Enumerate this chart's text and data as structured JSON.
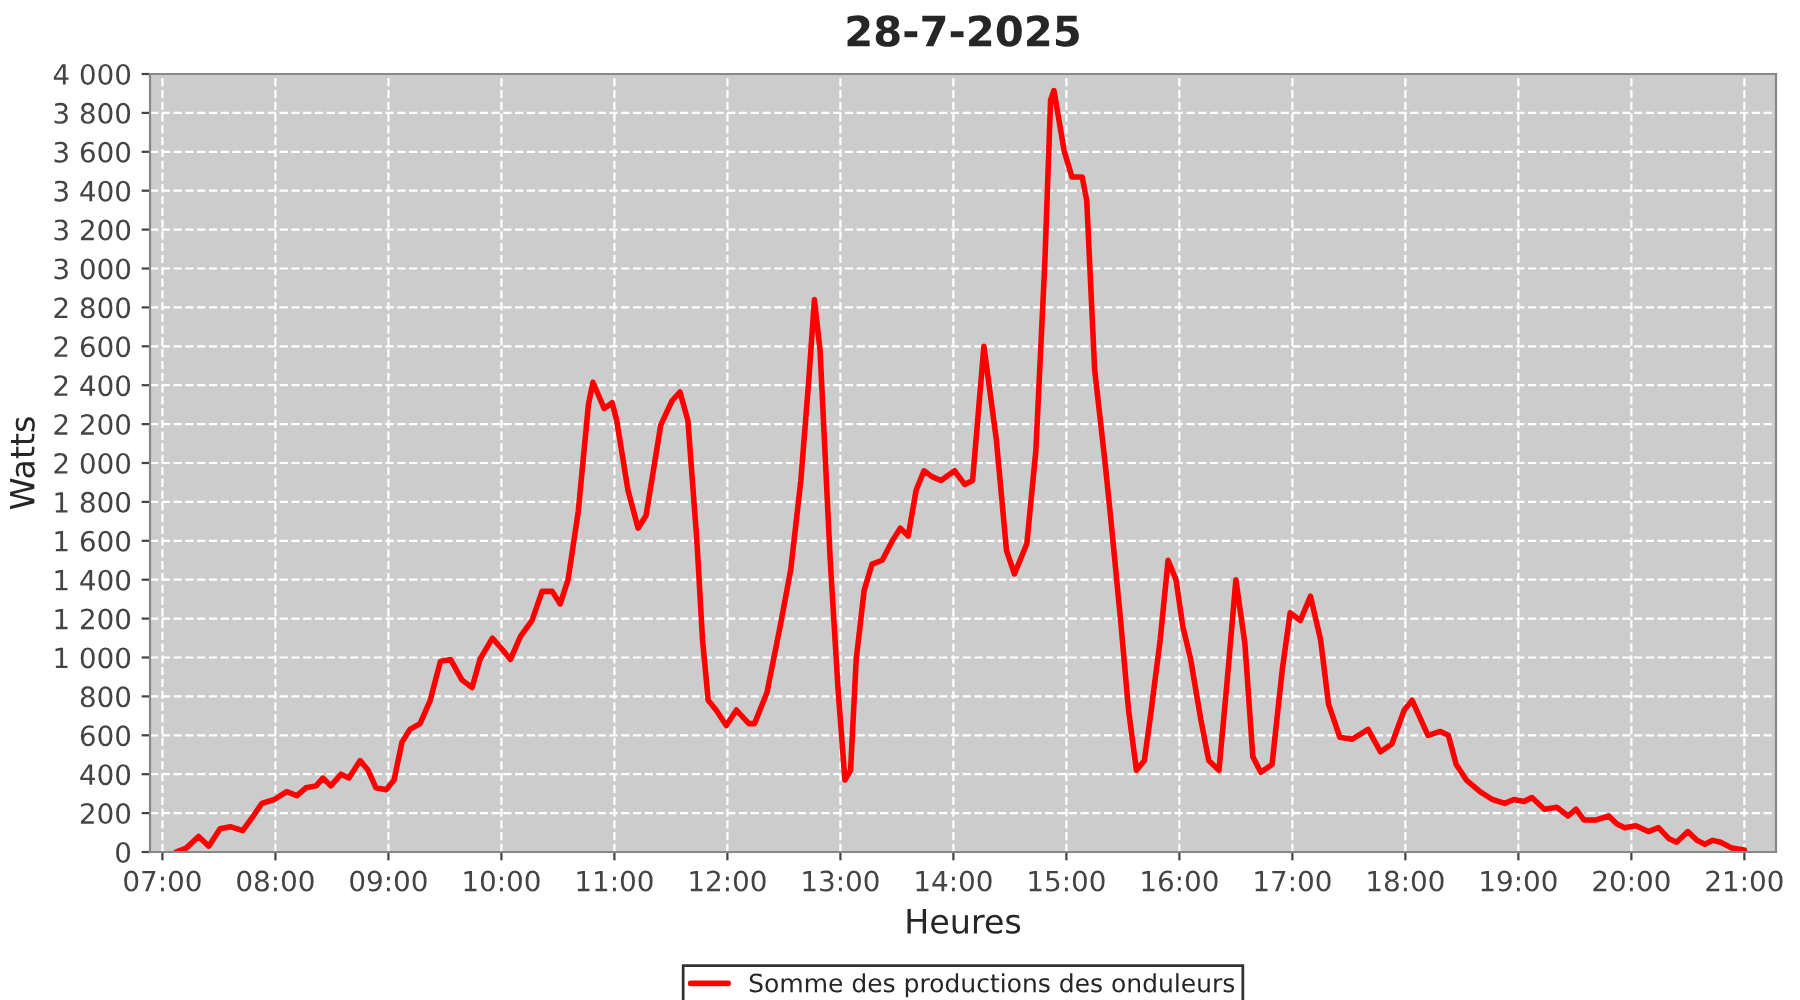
{
  "chart_data": {
    "type": "line",
    "title": "28-7-2025",
    "xlabel": "Heures",
    "ylabel": "Watts",
    "series": [
      {
        "name": "Somme des productions des onduleurs",
        "color": "#ff0000",
        "x": [
          7.12,
          7.21,
          7.32,
          7.41,
          7.51,
          7.6,
          7.71,
          7.81,
          7.88,
          7.99,
          8.1,
          8.19,
          8.27,
          8.36,
          8.42,
          8.49,
          8.58,
          8.65,
          8.75,
          8.82,
          8.89,
          8.98,
          9.05,
          9.12,
          9.19,
          9.28,
          9.37,
          9.46,
          9.55,
          9.65,
          9.74,
          9.81,
          9.92,
          10.01,
          10.08,
          10.17,
          10.27,
          10.36,
          10.45,
          10.52,
          10.59,
          10.68,
          10.77,
          10.81,
          10.91,
          10.98,
          11.02,
          11.12,
          11.21,
          11.28,
          11.41,
          11.51,
          11.58,
          11.65,
          11.73,
          11.78,
          11.83,
          11.9,
          11.99,
          12.08,
          12.19,
          12.24,
          12.35,
          12.47,
          12.56,
          12.65,
          12.72,
          12.77,
          12.82,
          12.91,
          12.98,
          13.04,
          13.09,
          13.14,
          13.21,
          13.28,
          13.37,
          13.46,
          13.53,
          13.6,
          13.67,
          13.74,
          13.81,
          13.89,
          14.01,
          14.1,
          14.17,
          14.27,
          14.38,
          14.47,
          14.54,
          14.65,
          14.73,
          14.81,
          14.86,
          14.89,
          14.98,
          15.05,
          15.14,
          15.18,
          15.25,
          15.34,
          15.39,
          15.48,
          15.55,
          15.62,
          15.69,
          15.74,
          15.83,
          15.9,
          15.97,
          16.03,
          16.1,
          16.19,
          16.26,
          16.35,
          16.42,
          16.5,
          16.58,
          16.65,
          16.72,
          16.82,
          16.91,
          16.98,
          17.07,
          17.16,
          17.25,
          17.32,
          17.42,
          17.53,
          17.67,
          17.78,
          17.88,
          17.99,
          18.06,
          18.2,
          18.31,
          18.38,
          18.45,
          18.54,
          18.66,
          18.77,
          18.88,
          18.96,
          19.05,
          19.12,
          19.23,
          19.34,
          19.44,
          19.51,
          19.58,
          19.69,
          19.8,
          19.87,
          19.94,
          20.04,
          20.15,
          20.24,
          20.33,
          20.4,
          20.5,
          20.58,
          20.65,
          20.72,
          20.79,
          20.89,
          21.0
        ],
        "values": [
          0,
          20,
          80,
          30,
          120,
          130,
          110,
          190,
          250,
          270,
          310,
          290,
          330,
          340,
          380,
          340,
          400,
          380,
          470,
          420,
          330,
          320,
          370,
          565,
          630,
          660,
          780,
          980,
          990,
          885,
          845,
          990,
          1100,
          1040,
          990,
          1110,
          1190,
          1340,
          1340,
          1275,
          1400,
          1750,
          2300,
          2415,
          2280,
          2310,
          2220,
          1860,
          1665,
          1730,
          2195,
          2320,
          2365,
          2220,
          1600,
          1090,
          780,
          730,
          650,
          730,
          660,
          660,
          820,
          1170,
          1450,
          1910,
          2425,
          2840,
          2580,
          1500,
          830,
          370,
          420,
          990,
          1345,
          1480,
          1500,
          1600,
          1665,
          1625,
          1860,
          1960,
          1930,
          1910,
          1960,
          1890,
          1910,
          2600,
          2120,
          1550,
          1430,
          1585,
          2065,
          3040,
          3865,
          3915,
          3605,
          3470,
          3470,
          3350,
          2480,
          2015,
          1730,
          1190,
          730,
          420,
          470,
          680,
          1090,
          1500,
          1400,
          1160,
          990,
          680,
          470,
          420,
          860,
          1400,
          1070,
          490,
          410,
          450,
          935,
          1230,
          1190,
          1315,
          1090,
          760,
          590,
          580,
          630,
          515,
          555,
          730,
          780,
          600,
          620,
          600,
          450,
          370,
          310,
          270,
          250,
          270,
          260,
          280,
          220,
          230,
          185,
          220,
          165,
          165,
          185,
          145,
          125,
          135,
          105,
          125,
          70,
          50,
          105,
          60,
          40,
          60,
          50,
          20,
          10
        ]
      }
    ],
    "xlim": [
      6.89,
      21.28
    ],
    "xticks": [
      {
        "value": 7,
        "label": "07:00"
      },
      {
        "value": 8,
        "label": "08:00"
      },
      {
        "value": 9,
        "label": "09:00"
      },
      {
        "value": 10,
        "label": "10:00"
      },
      {
        "value": 11,
        "label": "11:00"
      },
      {
        "value": 12,
        "label": "12:00"
      },
      {
        "value": 13,
        "label": "13:00"
      },
      {
        "value": 14,
        "label": "14:00"
      },
      {
        "value": 15,
        "label": "15:00"
      },
      {
        "value": 16,
        "label": "16:00"
      },
      {
        "value": 17,
        "label": "17:00"
      },
      {
        "value": 18,
        "label": "18:00"
      },
      {
        "value": 19,
        "label": "19:00"
      },
      {
        "value": 20,
        "label": "20:00"
      },
      {
        "value": 21,
        "label": "21:00"
      }
    ],
    "ylim": [
      0,
      4000
    ],
    "yticks": [
      0,
      200,
      400,
      600,
      800,
      {
        "value": 1000,
        "label": "1 000"
      },
      {
        "value": 1200,
        "label": "1 200"
      },
      {
        "value": 1400,
        "label": "1 400"
      },
      {
        "value": 1600,
        "label": "1 600"
      },
      {
        "value": 1800,
        "label": "1 800"
      },
      {
        "value": 2000,
        "label": "2 000"
      },
      {
        "value": 2200,
        "label": "2 200"
      },
      {
        "value": 2400,
        "label": "2 400"
      },
      {
        "value": 2600,
        "label": "2 600"
      },
      {
        "value": 2800,
        "label": "2 800"
      },
      {
        "value": 3000,
        "label": "3 000"
      },
      {
        "value": 3200,
        "label": "3 200"
      },
      {
        "value": 3400,
        "label": "3 400"
      },
      {
        "value": 3600,
        "label": "3 600"
      },
      {
        "value": 3800,
        "label": "3 800"
      },
      {
        "value": 4000,
        "label": "4 000"
      }
    ],
    "grid": true,
    "legend": "bottom",
    "line_style": "solid",
    "marker": "none"
  }
}
